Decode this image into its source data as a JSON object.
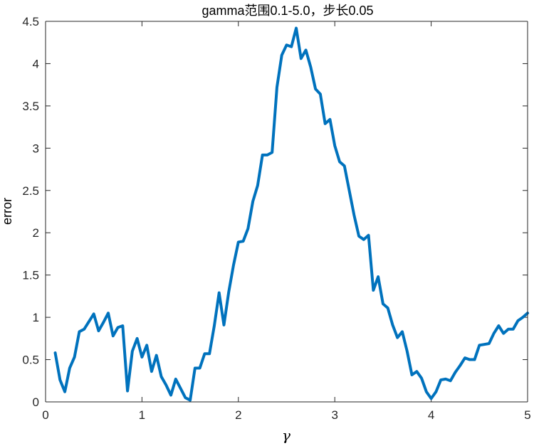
{
  "chart_data": {
    "type": "line",
    "title": "gamma范围0.1-5.0，步长0.05",
    "xlabel": "γ",
    "ylabel": "error",
    "xlim": [
      0,
      5
    ],
    "ylim": [
      0,
      4.5
    ],
    "xticks": [
      0,
      1,
      2,
      3,
      4,
      5
    ],
    "xtick_labels": [
      "0",
      "1",
      "2",
      "3",
      "4",
      "5"
    ],
    "yticks": [
      0,
      0.5,
      1,
      1.5,
      2,
      2.5,
      3,
      3.5,
      4,
      4.5
    ],
    "ytick_labels": [
      "0",
      "0.5",
      "1",
      "1.5",
      "2",
      "2.5",
      "3",
      "3.5",
      "4",
      "4.5"
    ],
    "grid": false,
    "line_color": "#0072BD",
    "series": [
      {
        "x": [
          0.1,
          0.15,
          0.2,
          0.25,
          0.3,
          0.35,
          0.4,
          0.45,
          0.5,
          0.55,
          0.6,
          0.65,
          0.7,
          0.75,
          0.8,
          0.85,
          0.9,
          0.95,
          1.0,
          1.05,
          1.1,
          1.15,
          1.2,
          1.25,
          1.3,
          1.35,
          1.4,
          1.45,
          1.5,
          1.55,
          1.6,
          1.65,
          1.7,
          1.75,
          1.8,
          1.85,
          1.9,
          1.95,
          2.0,
          2.05,
          2.1,
          2.15,
          2.2,
          2.25,
          2.3,
          2.35,
          2.4,
          2.45,
          2.5,
          2.55,
          2.6,
          2.65,
          2.7,
          2.75,
          2.8,
          2.85,
          2.9,
          2.95,
          3.0,
          3.05,
          3.1,
          3.15,
          3.2,
          3.25,
          3.3,
          3.35,
          3.4,
          3.45,
          3.5,
          3.55,
          3.6,
          3.65,
          3.7,
          3.75,
          3.8,
          3.85,
          3.9,
          3.95,
          4.0,
          4.05,
          4.1,
          4.15,
          4.2,
          4.25,
          4.3,
          4.35,
          4.4,
          4.45,
          4.5,
          4.55,
          4.6,
          4.65,
          4.7,
          4.75,
          4.8,
          4.85,
          4.9,
          4.95,
          5.0
        ],
        "values": [
          0.58,
          0.26,
          0.12,
          0.4,
          0.53,
          0.83,
          0.86,
          0.95,
          1.04,
          0.84,
          0.94,
          1.05,
          0.78,
          0.88,
          0.9,
          0.13,
          0.6,
          0.75,
          0.53,
          0.67,
          0.36,
          0.55,
          0.3,
          0.2,
          0.08,
          0.27,
          0.16,
          0.05,
          0.02,
          0.4,
          0.4,
          0.57,
          0.57,
          0.9,
          1.29,
          0.91,
          1.3,
          1.62,
          1.89,
          1.9,
          2.05,
          2.37,
          2.56,
          2.92,
          2.92,
          2.95,
          3.72,
          4.1,
          4.22,
          4.2,
          4.42,
          4.06,
          4.16,
          3.96,
          3.7,
          3.64,
          3.29,
          3.34,
          3.03,
          2.84,
          2.79,
          2.5,
          2.21,
          1.96,
          1.92,
          1.97,
          1.32,
          1.48,
          1.16,
          1.11,
          0.91,
          0.76,
          0.83,
          0.6,
          0.32,
          0.36,
          0.28,
          0.12,
          0.04,
          0.12,
          0.26,
          0.27,
          0.25,
          0.35,
          0.43,
          0.52,
          0.5,
          0.5,
          0.67,
          0.68,
          0.69,
          0.81,
          0.9,
          0.81,
          0.86,
          0.86,
          0.96,
          1.0,
          1.05
        ]
      }
    ]
  }
}
